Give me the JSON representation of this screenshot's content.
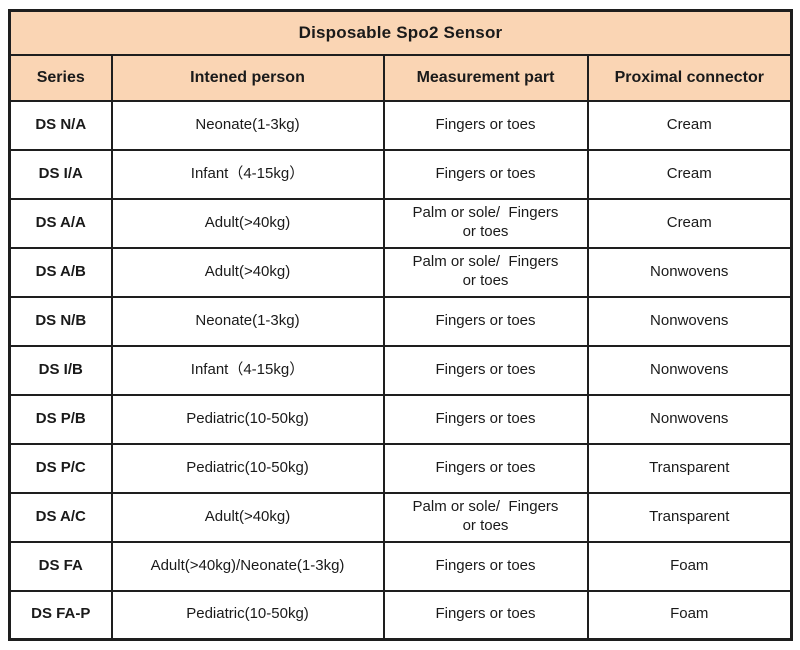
{
  "title": "Disposable Spo2 Sensor",
  "colors": {
    "header_bg": "#fad5b4",
    "border": "#1e1e1e",
    "text": "#1a1a1a",
    "page_bg": "#ffffff"
  },
  "table": {
    "headers": [
      "Series",
      "Intened person",
      "Measurement part",
      "Proximal connector"
    ],
    "rows": [
      {
        "series": "DS N/A",
        "person": "Neonate(1-3kg)",
        "part": "Fingers or toes",
        "connector": "Cream"
      },
      {
        "series": "DS I/A",
        "person": "Infant（4-15kg）",
        "part": "Fingers or toes",
        "connector": "Cream"
      },
      {
        "series": "DS A/A",
        "person": "Adult(>40kg)",
        "part": "Palm or sole/  Fingers\nor toes",
        "connector": "Cream"
      },
      {
        "series": "DS A/B",
        "person": "Adult(>40kg)",
        "part": "Palm or sole/  Fingers\nor toes",
        "connector": "Nonwovens"
      },
      {
        "series": "DS N/B",
        "person": "Neonate(1-3kg)",
        "part": "Fingers or toes",
        "connector": "Nonwovens"
      },
      {
        "series": "DS I/B",
        "person": "Infant（4-15kg）",
        "part": "Fingers or toes",
        "connector": "Nonwovens"
      },
      {
        "series": "DS P/B",
        "person": "Pediatric(10-50kg)",
        "part": "Fingers or toes",
        "connector": "Nonwovens"
      },
      {
        "series": "DS P/C",
        "person": "Pediatric(10-50kg)",
        "part": "Fingers or toes",
        "connector": "Transparent"
      },
      {
        "series": "DS A/C",
        "person": "Adult(>40kg)",
        "part": "Palm or sole/  Fingers\nor toes",
        "connector": "Transparent"
      },
      {
        "series": "DS FA",
        "person": "Adult(>40kg)/Neonate(1-3kg)",
        "part": "Fingers or toes",
        "connector": "Foam"
      },
      {
        "series": "DS FA-P",
        "person": "Pediatric(10-50kg)",
        "part": "Fingers or toes",
        "connector": "Foam"
      }
    ]
  }
}
